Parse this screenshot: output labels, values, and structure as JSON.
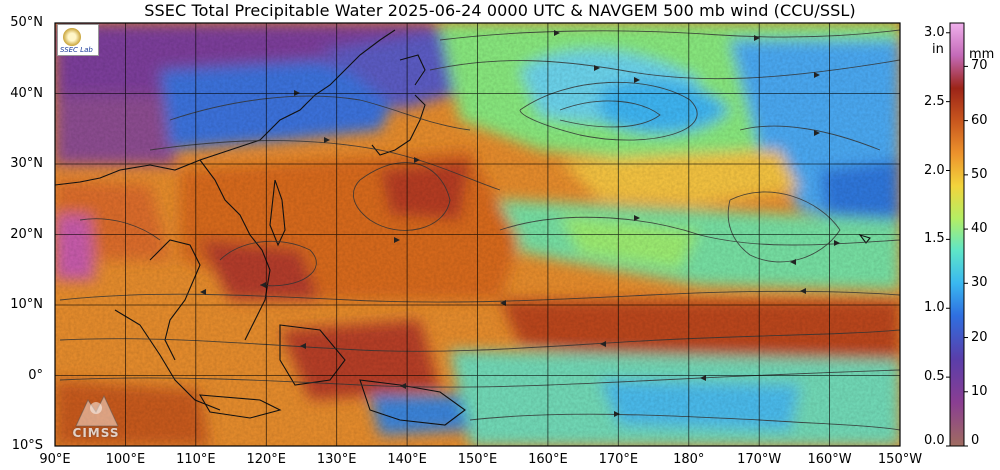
{
  "title": "SSEC Total Precipitable Water  2025-06-24 0000 UTC & NAVGEM 500 mb wind (CCU/SSL)",
  "map": {
    "lat_range": [
      -10,
      50
    ],
    "lon_range": [
      90,
      210
    ],
    "lat_labels": [
      "50°N",
      "40°N",
      "30°N",
      "20°N",
      "10°N",
      "0°",
      "10°S"
    ],
    "lon_labels": [
      "90°E",
      "100°E",
      "110°E",
      "120°E",
      "130°E",
      "140°E",
      "150°E",
      "160°E",
      "170°E",
      "180°",
      "170°W",
      "160°W",
      "150°W"
    ],
    "logos": {
      "top_left": "SSEC logo",
      "bottom_left": "CIMSS"
    }
  },
  "colorbar": {
    "inch_unit": "in",
    "mm_unit": "mm",
    "inch_ticks": [
      "0.0",
      "0.5",
      "1.0",
      "1.5",
      "2.0",
      "2.5",
      "3.0"
    ],
    "mm_ticks": [
      "0",
      "10",
      "20",
      "30",
      "40",
      "50",
      "60",
      "70"
    ],
    "stops": [
      {
        "mm": 0,
        "color": "#a06c60"
      },
      {
        "mm": 8,
        "color": "#8a3e92"
      },
      {
        "mm": 16,
        "color": "#5a3eaa"
      },
      {
        "mm": 24,
        "color": "#2f6fe0"
      },
      {
        "mm": 30,
        "color": "#3ab8f0"
      },
      {
        "mm": 36,
        "color": "#5ee6c8"
      },
      {
        "mm": 42,
        "color": "#b4ee64"
      },
      {
        "mm": 48,
        "color": "#f2d43c"
      },
      {
        "mm": 54,
        "color": "#ec922c"
      },
      {
        "mm": 60,
        "color": "#c8561e"
      },
      {
        "mm": 66,
        "color": "#9c2418"
      },
      {
        "mm": 72,
        "color": "#c46ab8"
      },
      {
        "mm": 78,
        "color": "#f0b0ec"
      }
    ]
  }
}
